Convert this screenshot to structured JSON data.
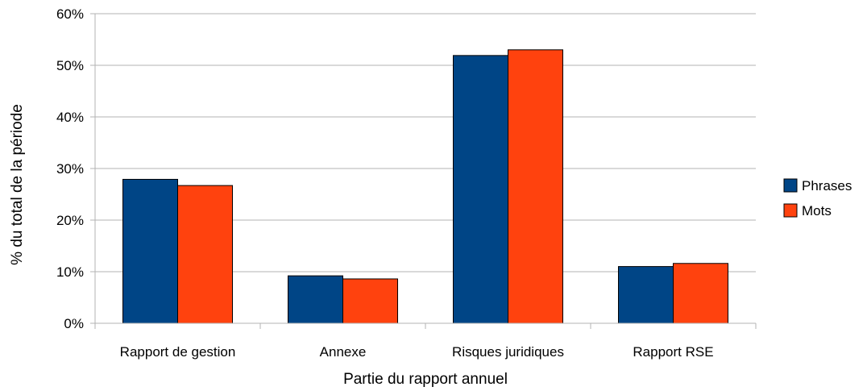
{
  "chart_data": {
    "type": "bar",
    "categories": [
      "Rapport de gestion",
      "Annexe",
      "Risques juridiques",
      "Rapport RSE"
    ],
    "series": [
      {
        "name": "Phrases",
        "values": [
          27.9,
          9.2,
          51.9,
          11.0
        ],
        "color": "#004586"
      },
      {
        "name": "Mots",
        "values": [
          26.7,
          8.6,
          53.0,
          11.6
        ],
        "color": "#ff420e"
      }
    ],
    "title": "",
    "xlabel": "Partie du rapport annuel",
    "ylabel": "% du total de la période",
    "ylim": [
      0,
      60
    ],
    "yticks": [
      "0%",
      "10%",
      "20%",
      "30%",
      "40%",
      "50%",
      "60%"
    ],
    "grid": true,
    "legend_position": "right"
  }
}
